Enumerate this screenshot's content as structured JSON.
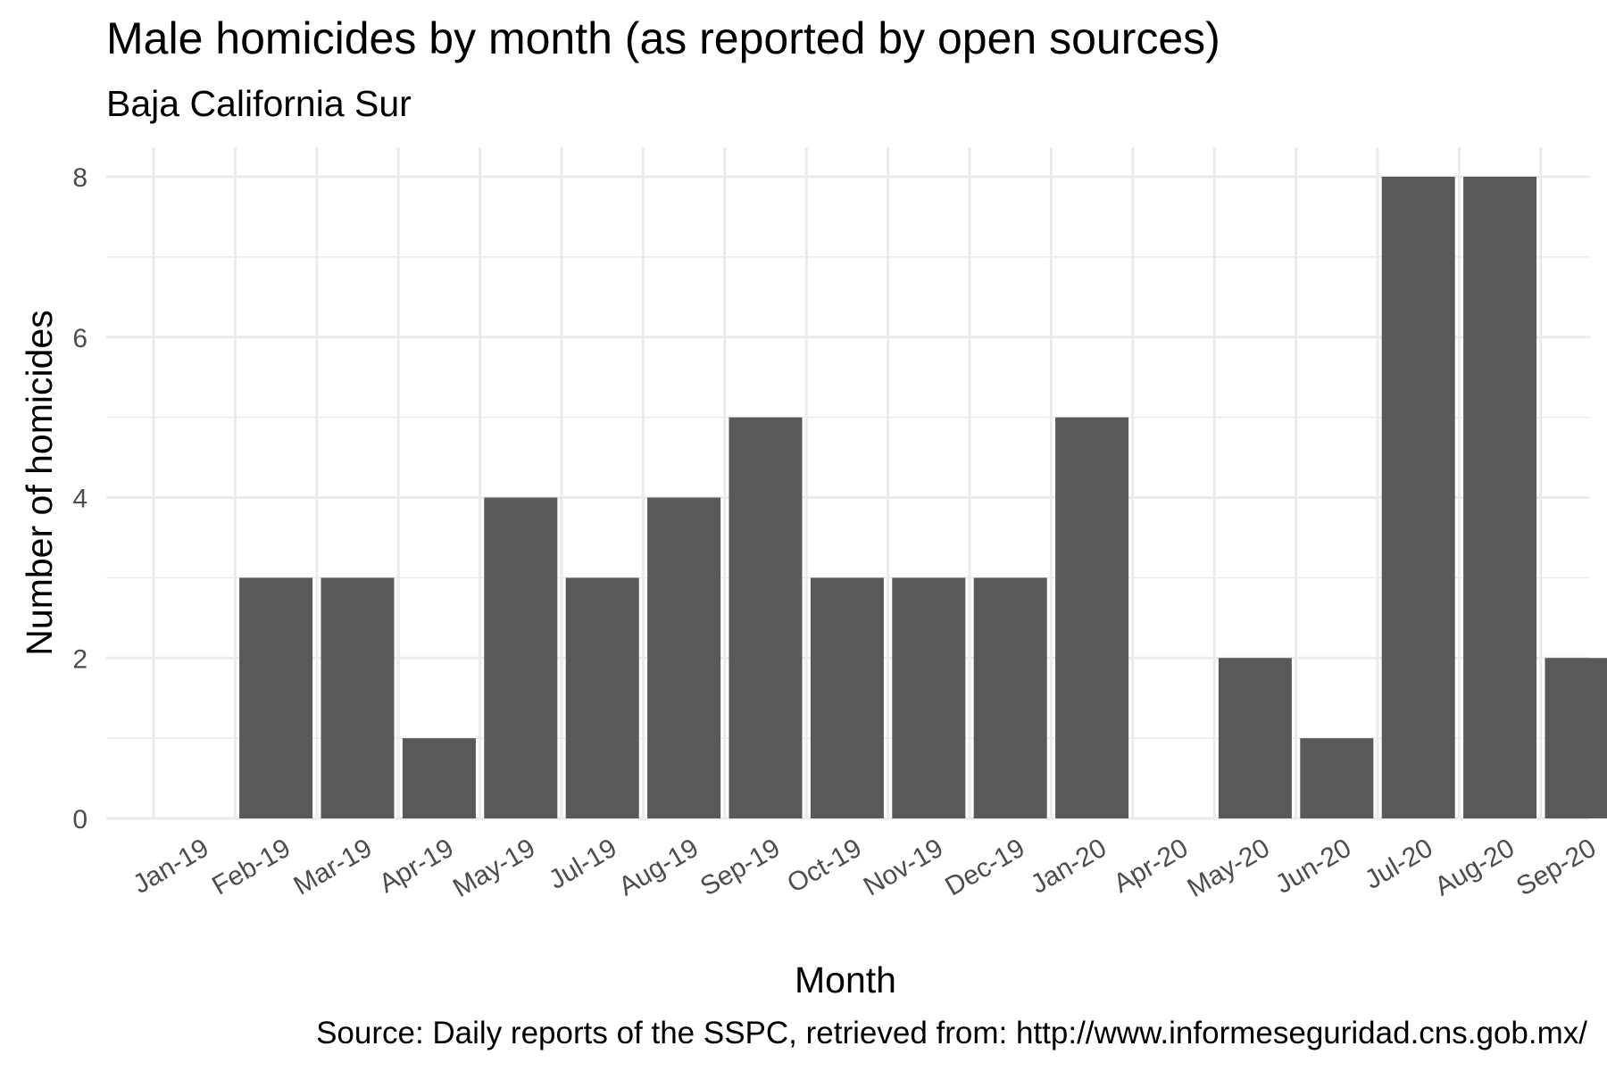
{
  "chart_data": {
    "type": "bar",
    "title": "Male homicides by month (as reported by open sources)",
    "subtitle": "Baja California Sur",
    "caption": "Source: Daily reports of the SSPC, retrieved from: http://www.informeseguridad.cns.gob.mx/",
    "xlabel": "Month",
    "ylabel": "Number of homicides",
    "categories": [
      "Jan-19",
      "Feb-19",
      "Mar-19",
      "Apr-19",
      "May-19",
      "Jul-19",
      "Aug-19",
      "Sep-19",
      "Oct-19",
      "Nov-19",
      "Dec-19",
      "Jan-20",
      "Apr-20",
      "May-20",
      "Jun-20",
      "Jul-20",
      "Aug-20",
      "Sep-20"
    ],
    "values": [
      0,
      3,
      3,
      1,
      4,
      3,
      4,
      5,
      3,
      3,
      3,
      5,
      0,
      2,
      1,
      8,
      8,
      2
    ],
    "ylim": [
      0,
      8
    ],
    "yticks": [
      0,
      2,
      4,
      6,
      8
    ],
    "grid": true,
    "bar_color": "#595959",
    "gridline_color": "#ebebeb"
  }
}
